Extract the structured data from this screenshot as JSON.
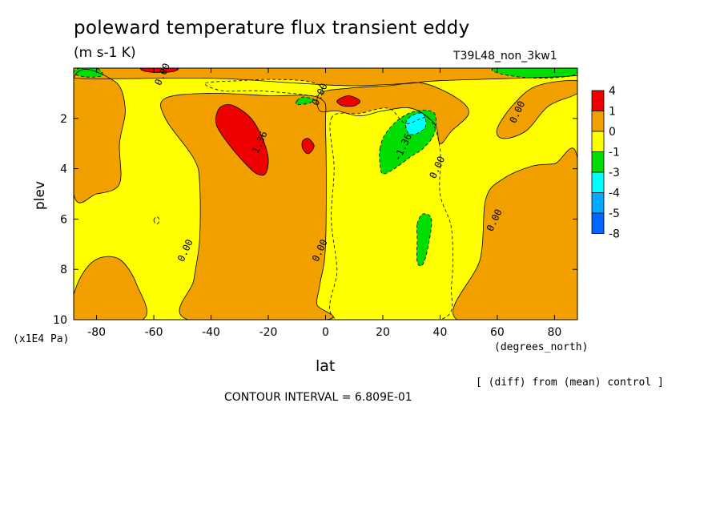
{
  "title": "poleward temperature flux transient eddy",
  "units": "(m s-1 K)",
  "run_label": "T39L48_non_3kw1",
  "diff_note": "[ (diff) from (mean) control ]",
  "contour_interval_text": "CONTOUR INTERVAL = 6.809E-01",
  "colors": {
    "c_gt4": "#ee0000",
    "c_1_4": "#f2a000",
    "c_0_1": "#f2a000",
    "c_m1_0": "#ffff00",
    "c_m3_m1": "#00dd00",
    "c_m4_m3": "#00ffff",
    "c_m5_m4": "#00aaff",
    "c_lt_m5": "#0066ff"
  },
  "chart_data": {
    "type": "contour",
    "title": "poleward temperature flux transient eddy",
    "xlabel": "lat",
    "x_unit": "(degrees_north)",
    "ylabel": "plev",
    "y_unit": "(x1E4 Pa)",
    "xlim": [
      -88,
      88
    ],
    "ylim": [
      0,
      10
    ],
    "y_inverted": true,
    "xticks": [
      -80,
      -60,
      -40,
      -20,
      0,
      20,
      40,
      60,
      80
    ],
    "yticks": [
      2,
      4,
      6,
      8,
      10
    ],
    "contour_interval": 0.6809,
    "colorbar": {
      "levels": [
        "4",
        "1",
        "0",
        "-1",
        "-3",
        "-4",
        "-5",
        "-8"
      ],
      "colors": [
        "#ee0000",
        "#f2a000",
        "#ffff00",
        "#00dd00",
        "#00ffff",
        "#00aaff",
        "#0066ff"
      ]
    },
    "contour_labels": [
      {
        "text": "0.00",
        "lat": -56,
        "p": 0.3
      },
      {
        "text": "0.00",
        "lat": -1,
        "p": 1.1
      },
      {
        "text": "0.00",
        "lat": 68,
        "p": 1.8
      },
      {
        "text": "1.36",
        "lat": -22,
        "p": 3.0
      },
      {
        "text": "-1.36",
        "lat": 28,
        "p": 3.2
      },
      {
        "text": "0.00",
        "lat": 40,
        "p": 4.0
      },
      {
        "text": "0.00",
        "lat": 60,
        "p": 6.1
      },
      {
        "text": "0.00",
        "lat": -48,
        "p": 7.3
      },
      {
        "text": "0.00",
        "lat": -1,
        "p": 7.3
      }
    ],
    "regions": [
      {
        "level": "0 to 1",
        "color_key": "c_0_1",
        "points": [
          [
            -88,
            0
          ],
          [
            88,
            0
          ],
          [
            88,
            0.3
          ],
          [
            40,
            0.5
          ],
          [
            30,
            0.6
          ],
          [
            10,
            0.7
          ],
          [
            -10,
            0.6
          ],
          [
            -40,
            0.4
          ],
          [
            -88,
            0.4
          ]
        ]
      },
      {
        "level": "0 to 1",
        "color_key": "c_0_1",
        "points": [
          [
            -88,
            0.4
          ],
          [
            -74,
            0.5
          ],
          [
            -70,
            1.6
          ],
          [
            -72,
            3
          ],
          [
            -72,
            4.6
          ],
          [
            -80,
            5
          ],
          [
            -88,
            5
          ]
        ]
      },
      {
        "level": "0 to 1",
        "color_key": "c_0_1",
        "points": [
          [
            -56,
            1.2
          ],
          [
            -40,
            1.0
          ],
          [
            -20,
            1.1
          ],
          [
            -2,
            1.2
          ],
          [
            0,
            2.5
          ],
          [
            0,
            7.0
          ],
          [
            -2,
            8.6
          ],
          [
            -3,
            9.4
          ],
          [
            0,
            10
          ],
          [
            -48,
            10
          ],
          [
            -46,
            8.4
          ],
          [
            -44,
            6.8
          ],
          [
            -44,
            4.6
          ],
          [
            -46,
            3.6
          ],
          [
            -56,
            2.0
          ]
        ]
      },
      {
        "level": "0 to 1",
        "color_key": "c_0_1",
        "points": [
          [
            8,
            0.8
          ],
          [
            22,
            0.7
          ],
          [
            34,
            0.6
          ],
          [
            46,
            1.2
          ],
          [
            50,
            1.8
          ],
          [
            44,
            2.5
          ],
          [
            40,
            3.0
          ],
          [
            38,
            2.2
          ],
          [
            30,
            1.6
          ],
          [
            20,
            1.7
          ],
          [
            12,
            1.9
          ],
          [
            4,
            1.7
          ],
          [
            -2,
            1.7
          ],
          [
            -2,
            1.0
          ]
        ]
      },
      {
        "level": "0 to 1",
        "color_key": "c_0_1",
        "points": [
          [
            46,
            10
          ],
          [
            54,
            7.6
          ],
          [
            56,
            5.2
          ],
          [
            62,
            4.4
          ],
          [
            72,
            3.9
          ],
          [
            80,
            3.8
          ],
          [
            88,
            3.6
          ],
          [
            88,
            10
          ]
        ]
      },
      {
        "level": "0 to 1",
        "color_key": "c_0_1",
        "points": [
          [
            60,
            2.4
          ],
          [
            66,
            1.4
          ],
          [
            74,
            0.7
          ],
          [
            88,
            0.5
          ],
          [
            88,
            1.0
          ],
          [
            78,
            1.5
          ],
          [
            70,
            2.5
          ],
          [
            62,
            2.8
          ]
        ]
      },
      {
        "level": "1 to 4",
        "color_key": "c_1_4",
        "points": [
          [
            -90,
            9.8
          ],
          [
            -86,
            8.4
          ],
          [
            -80,
            7.6
          ],
          [
            -72,
            7.6
          ],
          [
            -66,
            8.6
          ],
          [
            -64,
            10
          ],
          [
            -90,
            10
          ]
        ]
      },
      {
        "level": "-1 to 0",
        "color_key": "c_m1_0",
        "points": [
          [
            2,
            2.0
          ],
          [
            12,
            1.8
          ],
          [
            22,
            1.6
          ],
          [
            28,
            2.2
          ],
          [
            36,
            2.0
          ],
          [
            40,
            3.2
          ],
          [
            40,
            5.0
          ],
          [
            44,
            6.4
          ],
          [
            44,
            8.6
          ],
          [
            40,
            10
          ],
          [
            4,
            10
          ],
          [
            4,
            8.0
          ],
          [
            2,
            6.0
          ],
          [
            3,
            4.0
          ]
        ]
      },
      {
        "level": "-1 to 0",
        "color_key": "c_m1_0",
        "points": [
          [
            -42,
            0.6
          ],
          [
            -30,
            0.5
          ],
          [
            -20,
            0.45
          ],
          [
            -8,
            0.5
          ],
          [
            -2,
            0.7
          ],
          [
            -2,
            1.1
          ],
          [
            -12,
            1.0
          ],
          [
            -24,
            0.9
          ],
          [
            -36,
            0.9
          ]
        ]
      },
      {
        "level": "-1 to 0",
        "color_key": "c_m1_0",
        "points": [
          [
            -60,
            6.05
          ],
          [
            -59,
            5.9
          ],
          [
            -58,
            6.05
          ],
          [
            -59,
            6.2
          ]
        ]
      },
      {
        "level": "-3 to -1",
        "color_key": "c_m3_m1",
        "points": [
          [
            19,
            3.2
          ],
          [
            21,
            2.6
          ],
          [
            26,
            2.0
          ],
          [
            32,
            1.7
          ],
          [
            38,
            1.8
          ],
          [
            38,
            2.6
          ],
          [
            34,
            3.2
          ],
          [
            30,
            3.5
          ],
          [
            24,
            4.0
          ],
          [
            20,
            4.2
          ],
          [
            19,
            3.8
          ]
        ]
      },
      {
        "level": "-3 to -1",
        "color_key": "c_m3_m1",
        "points": [
          [
            32,
            6.2
          ],
          [
            34,
            5.8
          ],
          [
            37,
            6.0
          ],
          [
            36,
            7.0
          ],
          [
            34,
            7.8
          ],
          [
            32,
            7.7
          ],
          [
            32,
            6.8
          ]
        ]
      },
      {
        "level": "-3 to -1",
        "color_key": "c_m3_m1",
        "points": [
          [
            -80,
            0.0
          ],
          [
            -86,
            0.0
          ],
          [
            -88,
            0.2
          ],
          [
            -84,
            0.35
          ],
          [
            -78,
            0.3
          ]
        ]
      },
      {
        "level": "-3 to -1",
        "color_key": "c_m3_m1",
        "points": [
          [
            60,
            0.0
          ],
          [
            88,
            0.0
          ],
          [
            86,
            0.3
          ],
          [
            74,
            0.4
          ],
          [
            62,
            0.25
          ]
        ]
      },
      {
        "level": "-3 to -1",
        "color_key": "c_m3_m1",
        "points": [
          [
            -10,
            1.3
          ],
          [
            -8,
            1.15
          ],
          [
            -4,
            1.25
          ],
          [
            -6,
            1.4
          ],
          [
            -10,
            1.45
          ]
        ]
      },
      {
        "level": "-4 to -3",
        "color_key": "c_m4_m3",
        "points": [
          [
            28,
            2.2
          ],
          [
            30,
            1.9
          ],
          [
            34,
            1.8
          ],
          [
            35,
            2.3
          ],
          [
            32,
            2.6
          ],
          [
            29,
            2.6
          ]
        ]
      },
      {
        "level": "> 4",
        "color_key": "c_gt4",
        "points": [
          [
            -38,
            1.8
          ],
          [
            -36,
            1.5
          ],
          [
            -32,
            1.5
          ],
          [
            -26,
            2.0
          ],
          [
            -22,
            2.8
          ],
          [
            -20,
            3.6
          ],
          [
            -21,
            4.2
          ],
          [
            -24,
            4.2
          ],
          [
            -28,
            3.8
          ],
          [
            -34,
            3.0
          ],
          [
            -38,
            2.3
          ]
        ]
      },
      {
        "level": "> 4",
        "color_key": "c_gt4",
        "points": [
          [
            -8,
            2.9
          ],
          [
            -6,
            2.8
          ],
          [
            -4,
            3.1
          ],
          [
            -6,
            3.4
          ],
          [
            -8,
            3.2
          ]
        ]
      },
      {
        "level": "> 4",
        "color_key": "c_gt4",
        "points": [
          [
            4,
            1.3
          ],
          [
            8,
            1.1
          ],
          [
            12,
            1.3
          ],
          [
            10,
            1.5
          ],
          [
            6,
            1.5
          ]
        ]
      },
      {
        "level": "> 4",
        "color_key": "c_gt4",
        "points": [
          [
            -64,
            0.0
          ],
          [
            -52,
            0.0
          ],
          [
            -54,
            0.15
          ],
          [
            -62,
            0.15
          ]
        ]
      }
    ]
  }
}
